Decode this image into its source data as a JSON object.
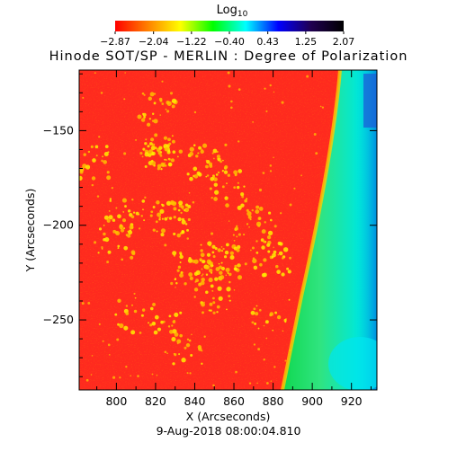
{
  "chart_data": {
    "type": "heatmap",
    "title": "Hinode SOT/SP - MERLIN : Degree of Polarization",
    "subtitle": "9-Aug-2018 08:00:04.810",
    "xlabel": "X (Arcseconds)",
    "ylabel": "Y (Arcseconds)",
    "x_ticks": [
      800,
      820,
      840,
      860,
      880,
      900,
      920
    ],
    "y_ticks": [
      -150,
      -200,
      -250
    ],
    "xlim": [
      781,
      933
    ],
    "ylim": [
      -287,
      -118
    ],
    "colorbar": {
      "label": "Log",
      "label_subscript": "10",
      "ticks": [
        "-2.87",
        "-2.04",
        "-1.22",
        "-0.40",
        "0.43",
        "1.25",
        "2.07"
      ],
      "range": [
        -2.87,
        2.07
      ],
      "colormap": [
        "#ff0000",
        "#ff8000",
        "#ffff00",
        "#00ff00",
        "#00ffff",
        "#0000ff",
        "#200050",
        "#000000"
      ]
    },
    "colors": {
      "background_red": "#ff2a1e",
      "bright_points": "#ffee00",
      "off_disk_green": "#20e070",
      "off_disk_cyan": "#00e8e0",
      "off_disk_blue": "#0050d0"
    }
  }
}
